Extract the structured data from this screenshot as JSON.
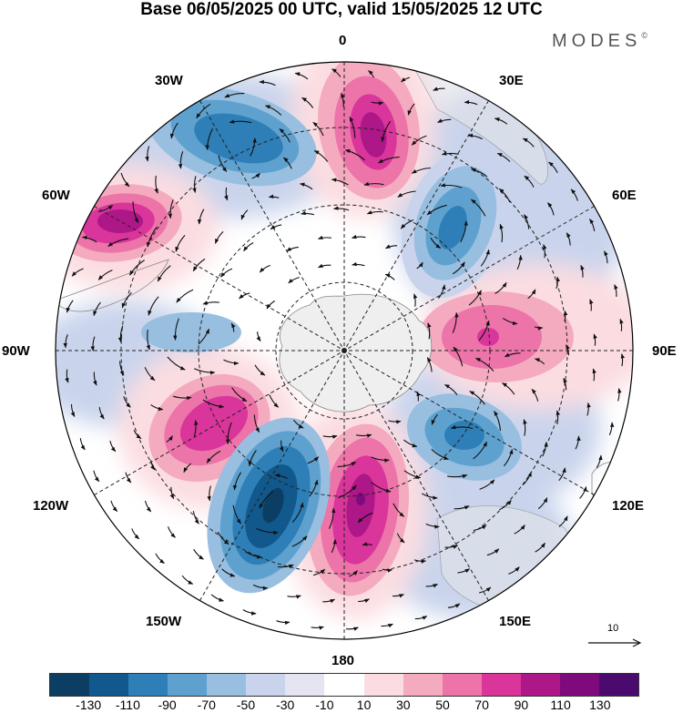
{
  "title": "Base 06/05/2025 00 UTC, valid 15/05/2025 12 UTC",
  "brand": {
    "name": "MODES",
    "mark": "©"
  },
  "longitude_labels": {
    "lon_0": "0",
    "lon_30e": "30E",
    "lon_60e": "60E",
    "lon_90e": "90E",
    "lon_120e": "120E",
    "lon_150e": "150E",
    "lon_180": "180",
    "lon_150w": "150W",
    "lon_120w": "120W",
    "lon_90w": "90W",
    "lon_60w": "60W",
    "lon_30w": "30W"
  },
  "vector_reference": {
    "label": "10"
  },
  "colorbar": {
    "colors": [
      "#0c3d63",
      "#11598c",
      "#2e7fb7",
      "#5ea1cf",
      "#98bee0",
      "#c9d4ec",
      "#e5e4f2",
      "#ffffff",
      "#fbdde1",
      "#f4aabf",
      "#ec74a8",
      "#d9359b",
      "#ad1787",
      "#7f0a7c",
      "#4b0b6e"
    ],
    "tick_labels": [
      "-130",
      "-110",
      "-90",
      "-70",
      "-50",
      "-30",
      "-10",
      "10",
      "30",
      "50",
      "70",
      "90",
      "110",
      "130"
    ]
  }
}
